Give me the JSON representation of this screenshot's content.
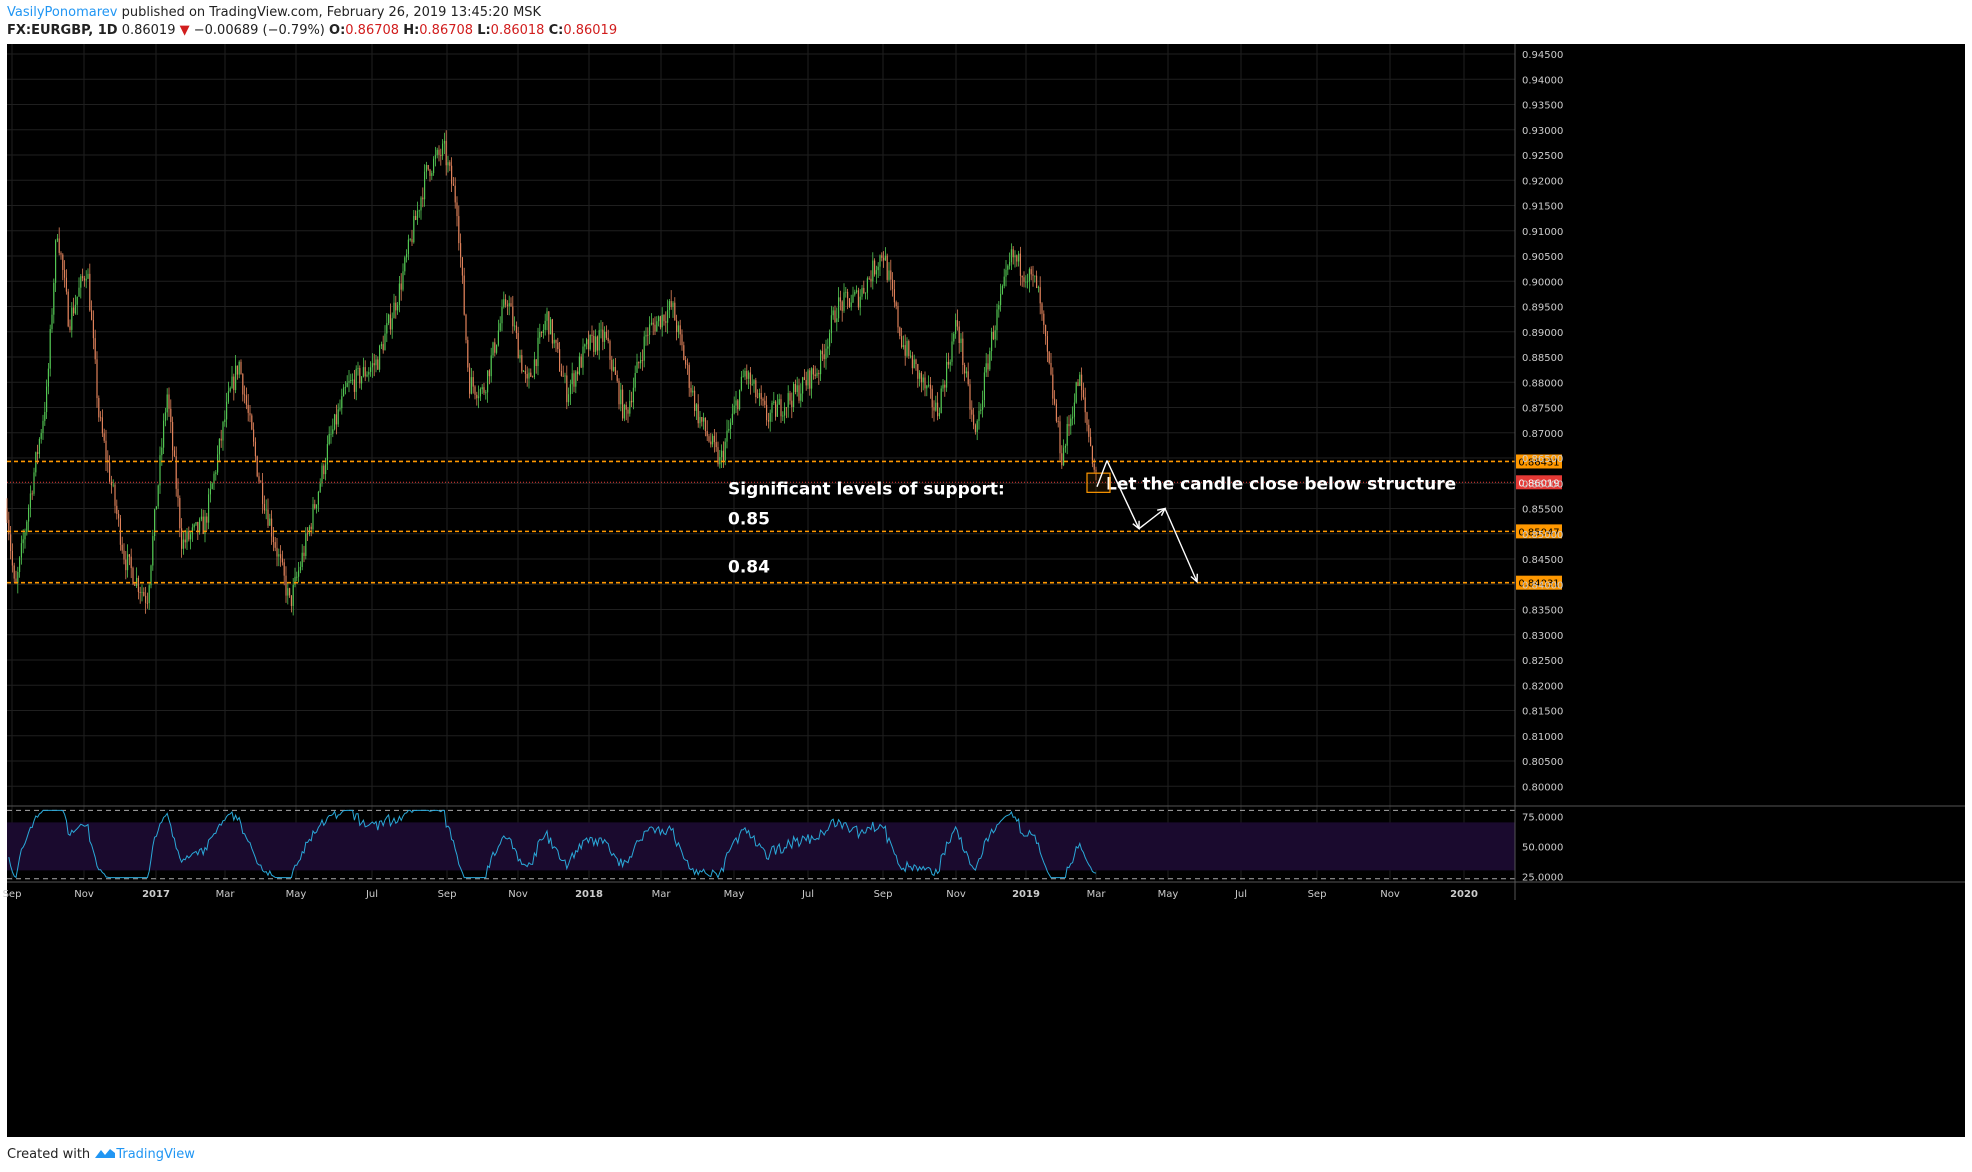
{
  "header": {
    "author": "VasilyPonomarev",
    "published_text": " published on TradingView.com, February 26, 2019 13:45:20 MSK",
    "symbol": "FX:EURGBP, 1D",
    "last": "0.86019",
    "change_arrow": "▼",
    "change": "−0.00689 (−0.79%)",
    "open_label": "O:",
    "open": "0.86708",
    "high_label": "H:",
    "high": "0.86708",
    "low_label": "L:",
    "low": "0.86018",
    "close_label": "C:",
    "close": "0.86019"
  },
  "footer": {
    "created_with": "Created with",
    "brand": "TradingView",
    "logo_icon": "tradingview-logo-icon"
  },
  "colors": {
    "background": "#000000",
    "grid": "#1f1f1f",
    "bull": "#53c653",
    "bear": "#e0825b",
    "level_line": "#ff9800",
    "price_line": "#e53935",
    "rsi_line": "#2aa8d8",
    "rsi_band": "#1a0a2e",
    "annotation": "#ffffff"
  },
  "chart_data": [
    {
      "type": "candlestick",
      "symbol": "FX:EURGBP",
      "timeframe": "1D",
      "x_ticks": [
        "Sep",
        "Nov",
        "2017",
        "Mar",
        "May",
        "Jul",
        "Sep",
        "Nov",
        "2018",
        "Mar",
        "May",
        "Jul",
        "Sep",
        "Nov",
        "2019",
        "Mar",
        "May",
        "Jul",
        "Sep",
        "Nov",
        "2020"
      ],
      "y_ticks": [
        "0.94500",
        "0.94000",
        "0.93500",
        "0.93000",
        "0.92500",
        "0.92000",
        "0.91500",
        "0.91000",
        "0.90500",
        "0.90000",
        "0.89500",
        "0.89000",
        "0.88500",
        "0.88000",
        "0.87500",
        "0.87000",
        "0.86500",
        "0.86000",
        "0.85500",
        "0.85000",
        "0.84500",
        "0.84000",
        "0.83500",
        "0.83000",
        "0.82500",
        "0.82000",
        "0.81500",
        "0.81000",
        "0.80500",
        "0.80000"
      ],
      "ylim": [
        0.7965,
        0.9495
      ],
      "grid": true,
      "price_path": [
        {
          "t": 0,
          "v": 0.855
        },
        {
          "t": 8,
          "v": 0.838
        },
        {
          "t": 22,
          "v": 0.856
        },
        {
          "t": 40,
          "v": 0.878
        },
        {
          "t": 50,
          "v": 0.911
        },
        {
          "t": 62,
          "v": 0.892
        },
        {
          "t": 80,
          "v": 0.903
        },
        {
          "t": 92,
          "v": 0.873
        },
        {
          "t": 118,
          "v": 0.845
        },
        {
          "t": 140,
          "v": 0.837
        },
        {
          "t": 160,
          "v": 0.878
        },
        {
          "t": 175,
          "v": 0.848
        },
        {
          "t": 198,
          "v": 0.852
        },
        {
          "t": 222,
          "v": 0.877
        },
        {
          "t": 232,
          "v": 0.884
        },
        {
          "t": 252,
          "v": 0.861
        },
        {
          "t": 272,
          "v": 0.845
        },
        {
          "t": 283,
          "v": 0.836
        },
        {
          "t": 300,
          "v": 0.849
        },
        {
          "t": 322,
          "v": 0.868
        },
        {
          "t": 340,
          "v": 0.879
        },
        {
          "t": 370,
          "v": 0.884
        },
        {
          "t": 392,
          "v": 0.898
        },
        {
          "t": 420,
          "v": 0.922
        },
        {
          "t": 437,
          "v": 0.926
        },
        {
          "t": 450,
          "v": 0.915
        },
        {
          "t": 462,
          "v": 0.88
        },
        {
          "t": 476,
          "v": 0.878
        },
        {
          "t": 500,
          "v": 0.897
        },
        {
          "t": 520,
          "v": 0.879
        },
        {
          "t": 540,
          "v": 0.893
        },
        {
          "t": 560,
          "v": 0.878
        },
        {
          "t": 580,
          "v": 0.887
        },
        {
          "t": 598,
          "v": 0.889
        },
        {
          "t": 618,
          "v": 0.873
        },
        {
          "t": 640,
          "v": 0.89
        },
        {
          "t": 665,
          "v": 0.895
        },
        {
          "t": 690,
          "v": 0.874
        },
        {
          "t": 713,
          "v": 0.864
        },
        {
          "t": 738,
          "v": 0.882
        },
        {
          "t": 760,
          "v": 0.873
        },
        {
          "t": 790,
          "v": 0.878
        },
        {
          "t": 812,
          "v": 0.883
        },
        {
          "t": 830,
          "v": 0.895
        },
        {
          "t": 852,
          "v": 0.897
        },
        {
          "t": 876,
          "v": 0.906
        },
        {
          "t": 895,
          "v": 0.888
        },
        {
          "t": 930,
          "v": 0.874
        },
        {
          "t": 950,
          "v": 0.892
        },
        {
          "t": 968,
          "v": 0.869
        },
        {
          "t": 985,
          "v": 0.889
        },
        {
          "t": 1005,
          "v": 0.905
        },
        {
          "t": 1030,
          "v": 0.899
        },
        {
          "t": 1055,
          "v": 0.865
        },
        {
          "t": 1072,
          "v": 0.881
        },
        {
          "t": 1090,
          "v": 0.86
        }
      ],
      "horizontal_levels": [
        {
          "value": 0.86431,
          "label": "0.86431",
          "style": "dashed"
        },
        {
          "value": 0.86019,
          "label": "0.86019",
          "style": "dotted",
          "role": "last-price"
        },
        {
          "value": 0.85047,
          "label": "0.85047",
          "style": "dashed"
        },
        {
          "value": 0.84031,
          "label": "0.84031",
          "style": "dashed"
        }
      ],
      "annotations": [
        {
          "text": "Significant levels of support:",
          "value": 0.859
        },
        {
          "text": "0.85",
          "value": 0.853
        },
        {
          "text": "0.84",
          "value": 0.8435
        },
        {
          "text": "Let the candle close below structure",
          "value": 0.86
        }
      ],
      "projection_path": [
        {
          "t": 1100,
          "v": 0.8645
        },
        {
          "t": 1132,
          "v": 0.851
        },
        {
          "t": 1158,
          "v": 0.855
        },
        {
          "t": 1190,
          "v": 0.8405
        }
      ],
      "highlight_box": {
        "t_from": 1080,
        "t_to": 1103,
        "v_from": 0.862,
        "v_to": 0.8582
      }
    },
    {
      "type": "line",
      "name": "RSI",
      "y_ticks": [
        "75.0000",
        "50.0000",
        "25.0000"
      ],
      "ylim": [
        22,
        82
      ],
      "band": [
        30,
        70
      ],
      "guides": [
        80,
        23
      ]
    }
  ]
}
